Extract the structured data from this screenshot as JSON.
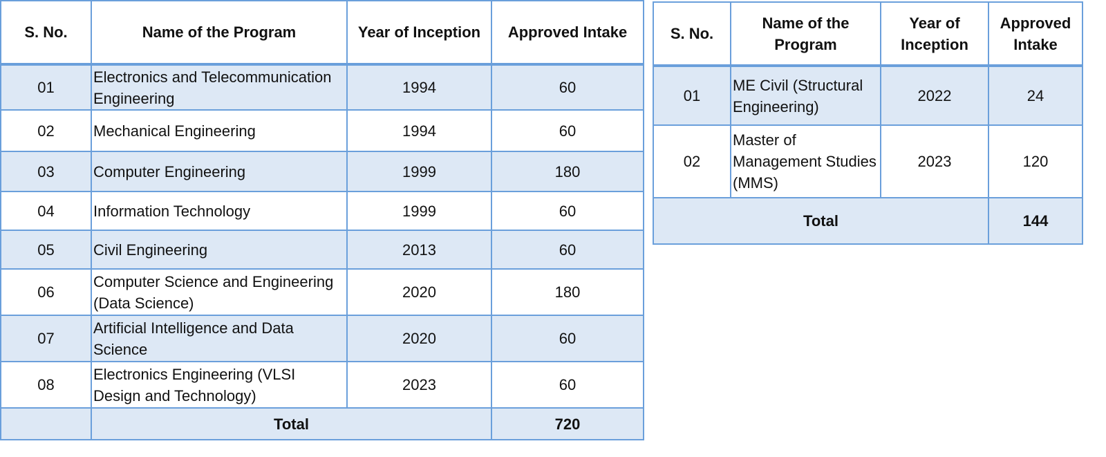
{
  "tables": [
    {
      "headers": [
        "S. No.",
        "Name of the  Program",
        "Year of Inception",
        "Approved  Intake"
      ],
      "rows": [
        [
          "01",
          "Electronics and Telecommunication Engineering",
          "1994",
          "60"
        ],
        [
          "02",
          "Mechanical Engineering",
          "1994",
          "60"
        ],
        [
          "03",
          "Computer  Engineering",
          "1999",
          "180"
        ],
        [
          "04",
          "Information Technology",
          "1999",
          "60"
        ],
        [
          "05",
          "Civil Engineering",
          "2013",
          "60"
        ],
        [
          "06",
          "Computer Science and Engineering (Data Science)",
          "2020",
          "180"
        ],
        [
          "07",
          "Artificial Intelligence and Data Science",
          "2020",
          "60"
        ],
        [
          "08",
          "Electronics Engineering (VLSI Design and Technology)",
          "2023",
          "60"
        ]
      ],
      "total": {
        "label": "Total",
        "value": "720"
      }
    },
    {
      "headers": [
        "S. No.",
        "Name of the Program",
        "Year of Inception",
        "Approved Intake"
      ],
      "rows": [
        [
          "01",
          "ME Civil (Structural Engineering)",
          "2022",
          "24"
        ],
        [
          "02",
          "Master of Management Studies (MMS)",
          "2023",
          "120"
        ]
      ],
      "total": {
        "label": "Total",
        "value": "144"
      }
    }
  ]
}
